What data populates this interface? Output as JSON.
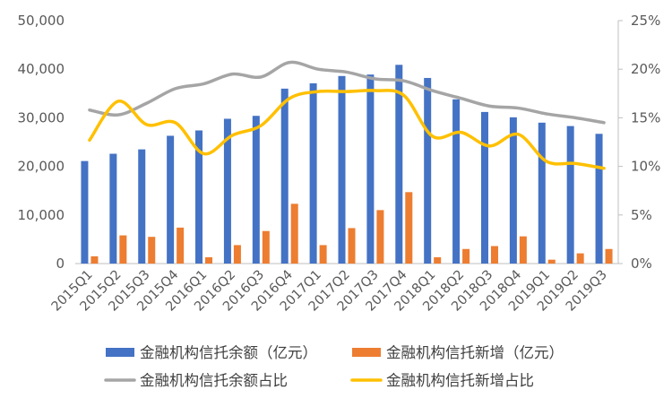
{
  "chart_data": {
    "type": "bar",
    "categories": [
      "2015Q1",
      "2015Q2",
      "2015Q3",
      "2015Q4",
      "2016Q1",
      "2016Q2",
      "2016Q3",
      "2016Q4",
      "2017Q1",
      "2017Q2",
      "2017Q3",
      "2017Q4",
      "2018Q1",
      "2018Q2",
      "2018Q3",
      "2018Q4",
      "2019Q1",
      "2019Q2",
      "2019Q3"
    ],
    "series": [
      {
        "name": "金融机构信托余额（亿元）",
        "chart": "bar",
        "axis": "left",
        "color": "#4472C4",
        "values": [
          21100,
          22600,
          23500,
          26300,
          27400,
          29800,
          30400,
          36000,
          37100,
          38600,
          38900,
          40900,
          38200,
          33800,
          31200,
          30100,
          29000,
          28300,
          26700
        ]
      },
      {
        "name": "金融机构信托新增（亿元）",
        "chart": "bar",
        "axis": "left",
        "color": "#ED7D31",
        "values": [
          1500,
          5800,
          5500,
          7400,
          1300,
          3800,
          6700,
          12300,
          3800,
          7300,
          11000,
          14700,
          1300,
          3000,
          3600,
          5600,
          800,
          2100,
          3000
        ]
      },
      {
        "name": "金融机构信托余额占比",
        "chart": "line",
        "axis": "right",
        "color": "#A5A5A5",
        "values": [
          15.8,
          15.3,
          16.5,
          18.0,
          18.5,
          19.5,
          19.2,
          20.7,
          20.0,
          19.7,
          19.0,
          18.8,
          17.8,
          17.0,
          16.2,
          16.0,
          15.4,
          15.0,
          14.5
        ]
      },
      {
        "name": "金融机构信托新增占比",
        "chart": "line",
        "axis": "right",
        "color": "#FFC000",
        "values": [
          12.7,
          16.7,
          14.3,
          14.5,
          11.3,
          13.2,
          14.2,
          17.0,
          17.7,
          17.7,
          17.8,
          17.3,
          13.1,
          13.5,
          12.1,
          13.3,
          10.5,
          10.3,
          9.8
        ]
      }
    ],
    "y_left": {
      "min": 0,
      "max": 50000,
      "ticks": [
        "0",
        "10,000",
        "20,000",
        "30,000",
        "40,000",
        "50,000"
      ]
    },
    "y_right": {
      "min": 0,
      "max": 25,
      "ticks": [
        "0%",
        "5%",
        "10%",
        "15%",
        "20%",
        "25%"
      ]
    },
    "grid": false,
    "legend_position": "bottom"
  }
}
